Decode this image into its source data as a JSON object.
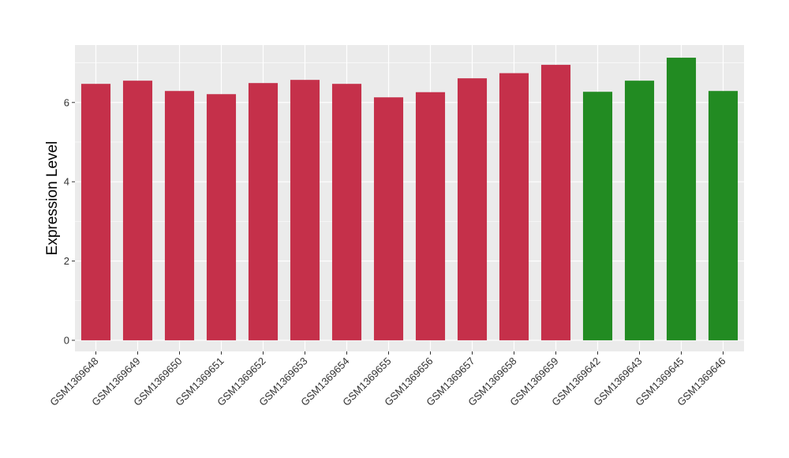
{
  "chart_data": {
    "type": "bar",
    "ylabel": "Expression Level",
    "xlabel": "",
    "ylim": [
      -0.28,
      7.45
    ],
    "yticks": [
      0,
      2,
      4,
      6
    ],
    "grid": true,
    "categories": [
      "GSM1369648",
      "GSM1369649",
      "GSM1369650",
      "GSM1369651",
      "GSM1369652",
      "GSM1369653",
      "GSM1369654",
      "GSM1369655",
      "GSM1369656",
      "GSM1369657",
      "GSM1369658",
      "GSM1369659",
      "GSM1369642",
      "GSM1369643",
      "GSM1369645",
      "GSM1369646"
    ],
    "values": [
      6.47,
      6.55,
      6.29,
      6.21,
      6.49,
      6.57,
      6.47,
      6.13,
      6.26,
      6.61,
      6.74,
      6.95,
      6.27,
      6.55,
      7.13,
      6.29
    ],
    "groups": [
      "a",
      "a",
      "a",
      "a",
      "a",
      "a",
      "a",
      "a",
      "a",
      "a",
      "a",
      "a",
      "b",
      "b",
      "b",
      "b"
    ],
    "colors": {
      "a": "#C5304A",
      "b": "#228B22"
    },
    "panel_background": "#EBEBEB",
    "gridline_color": "#FFFFFF"
  }
}
